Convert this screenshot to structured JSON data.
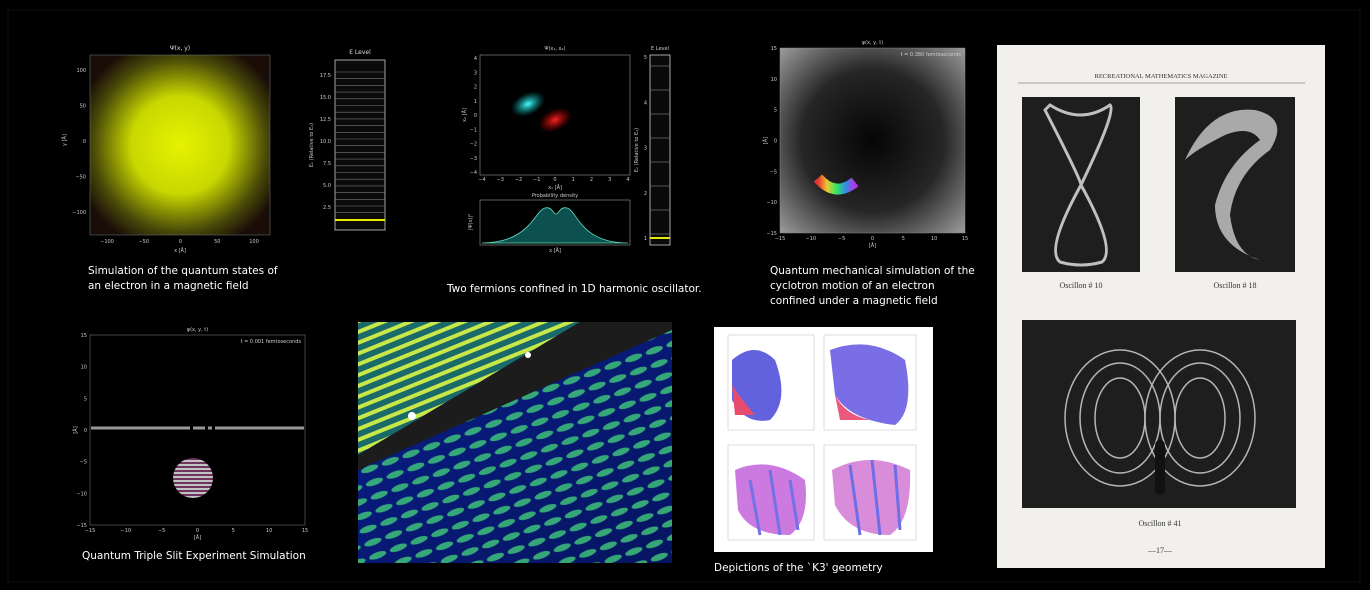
{
  "panels": [
    {
      "caption": [
        "Simulation of the quantum states of",
        "an electron in a magnetic field"
      ],
      "plot_title": "Ψ(x, y)",
      "x_label": "x [Å]",
      "y_label": "y [Å]",
      "xticks": [
        "−100",
        "−50",
        "0",
        "50",
        "100"
      ],
      "yticks": [
        "100",
        "50",
        "0",
        "−50",
        "−100"
      ],
      "level_title": "E Level",
      "level_label": "Eₙ (Relative to E₁)",
      "level_ticks": [
        "17.5",
        "15.0",
        "12.5",
        "10.0",
        "7.5",
        "5.0",
        "2.5"
      ]
    },
    {
      "caption": [
        "Two fermions confined in 1D harmonic oscillator."
      ],
      "plot_title": "Ψ(x₁, x₂)",
      "x_label": "x₁ [Å]",
      "y_label": "x₂ [Å]",
      "xticks": [
        "−4",
        "−3",
        "−2",
        "−1",
        "0",
        "1",
        "2",
        "3",
        "4"
      ],
      "yticks": [
        "4",
        "3",
        "2",
        "1",
        "0",
        "−1",
        "−2",
        "−3",
        "−4"
      ],
      "density_title": "Probability density",
      "density_y_label": "|Ψ(x)|²",
      "density_x_label": "x [Å]",
      "level_title": "E Level",
      "level_label": "Eₙ (Relative to E₁)",
      "level_ticks": [
        "5",
        "4",
        "3",
        "2",
        "1"
      ]
    },
    {
      "caption": [
        "Quantum mechanical simulation of the",
        "cyclotron motion of an electron",
        "confined under a magnetic field"
      ],
      "plot_title": "φ(x, y, t)",
      "annotation": "t = 0.380 femtoseconds",
      "x_label": "[Å]",
      "y_label": "[Å]",
      "xticks": [
        "−15",
        "−10",
        "−5",
        "0",
        "5",
        "10",
        "15"
      ],
      "yticks": [
        "15",
        "10",
        "5",
        "0",
        "−5",
        "−10",
        "−15"
      ]
    },
    {
      "caption": [
        "Quantum Triple Slit Experiment Simulation"
      ],
      "plot_title": "φ(x, y, t)",
      "annotation": "t = 0.001 femtoseconds",
      "x_label": "[Å]",
      "y_label": "[Å]",
      "xticks": [
        "−15",
        "−10",
        "−5",
        "0",
        "5",
        "10",
        "15"
      ],
      "yticks": [
        "15",
        "10",
        "5",
        "0",
        "−5",
        "−10",
        "−15"
      ]
    },
    {
      "caption": [
        "Depictions of the `K3' geometry"
      ]
    }
  ],
  "magazine": {
    "header": "RECREATIONAL MATHEMATICS MAGAZINE",
    "figures": [
      "Oscillon # 10",
      "Oscillon # 18",
      "Oscillon # 41"
    ],
    "page_number": "—17—"
  }
}
